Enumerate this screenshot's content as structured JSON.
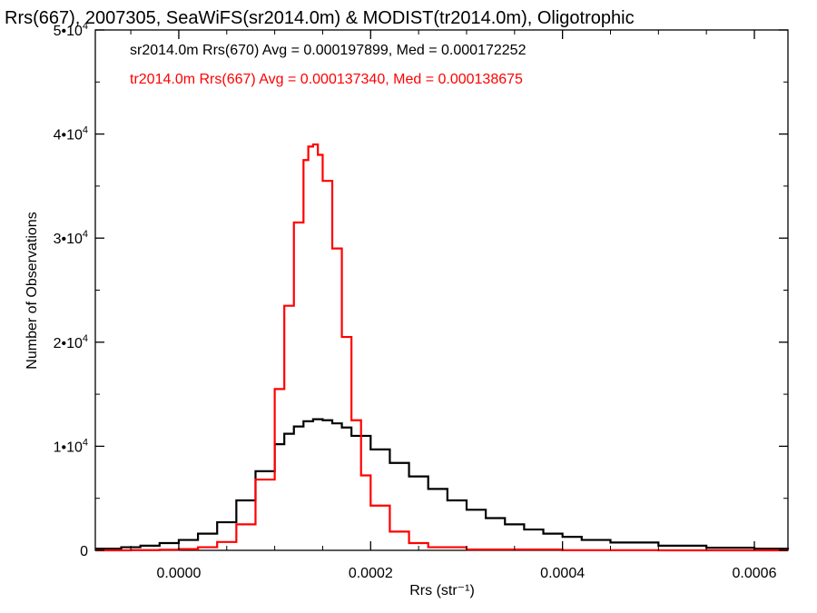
{
  "chart_data": {
    "type": "line",
    "title": "Rrs(667), 2007305, SeaWiFS(sr2014.0m) & MODIST(tr2014.0m), Oligotrophic",
    "xlabel": "Rrs (str⁻¹)",
    "ylabel": "Number of Observations",
    "xlim": [
      -8.7e-05,
      0.000635
    ],
    "ylim": [
      0,
      50000
    ],
    "x_ticks": [
      {
        "value": 0.0,
        "label": "0.0000"
      },
      {
        "value": 0.0002,
        "label": "0.0002"
      },
      {
        "value": 0.0004,
        "label": "0.0004"
      },
      {
        "value": 0.0006,
        "label": "0.0006"
      }
    ],
    "y_ticks": [
      {
        "value": 0,
        "label": "0"
      },
      {
        "value": 10000,
        "label": "1•10",
        "exp": "4"
      },
      {
        "value": 20000,
        "label": "2•10",
        "exp": "4"
      },
      {
        "value": 30000,
        "label": "3•10",
        "exp": "4"
      },
      {
        "value": 40000,
        "label": "4•10",
        "exp": "4"
      },
      {
        "value": 50000,
        "label": "5•10",
        "exp": "4"
      }
    ],
    "grid": false,
    "legend_position": "top-left",
    "series": [
      {
        "name": "sr2014.0m Rrs(670) Avg = 0.000197899, Med = 0.000172252",
        "color": "#000000",
        "style": "step",
        "x": [
          -9e-05,
          -6e-05,
          -4e-05,
          -2e-05,
          0.0,
          2e-05,
          4e-05,
          6e-05,
          8e-05,
          0.0001,
          0.00011,
          0.00012,
          0.00013,
          0.00014,
          0.00015,
          0.00016,
          0.00017,
          0.00018,
          0.0002,
          0.00022,
          0.00024,
          0.00026,
          0.00028,
          0.0003,
          0.00032,
          0.00034,
          0.00036,
          0.00038,
          0.0004,
          0.00042,
          0.00045,
          0.0005,
          0.00055,
          0.0006,
          0.00064
        ],
        "y": [
          150,
          300,
          450,
          700,
          1000,
          1600,
          2700,
          4800,
          7600,
          10200,
          11200,
          11900,
          12400,
          12600,
          12500,
          12200,
          11800,
          11000,
          9700,
          8400,
          7100,
          5900,
          4800,
          3900,
          3100,
          2500,
          2000,
          1600,
          1300,
          1000,
          750,
          450,
          250,
          150,
          100
        ]
      },
      {
        "name": "tr2014.0m Rrs(667) Avg = 0.000137340, Med = 0.000138675",
        "color": "#ff0000",
        "style": "step",
        "x": [
          -9e-05,
          -5e-05,
          -2e-05,
          0.0,
          2e-05,
          4e-05,
          6e-05,
          8e-05,
          0.0001,
          0.00011,
          0.00012,
          0.00013,
          0.000135,
          0.00014,
          0.000145,
          0.00015,
          0.00016,
          0.00017,
          0.00018,
          0.00019,
          0.0002,
          0.00022,
          0.00024,
          0.00026,
          0.0003,
          0.0004,
          0.0005,
          0.0006,
          0.00064
        ],
        "y": [
          0,
          20,
          60,
          120,
          300,
          800,
          2500,
          6800,
          15500,
          23500,
          31500,
          37500,
          38800,
          39000,
          38000,
          35500,
          29000,
          20500,
          12500,
          7200,
          4300,
          1800,
          700,
          300,
          80,
          10,
          0,
          0,
          0
        ]
      }
    ]
  }
}
